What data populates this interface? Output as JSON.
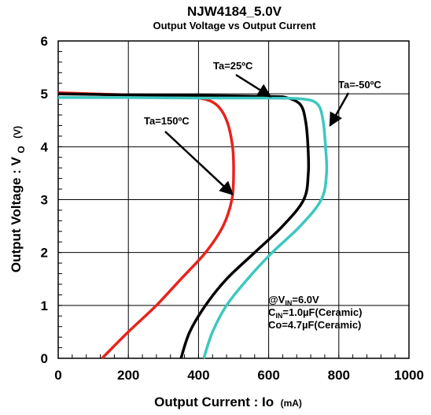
{
  "chart_data": {
    "type": "line",
    "title": "NJW4184_5.0V",
    "subtitle": "Output Voltage vs Output Current",
    "xlabel": "Output Current : Io",
    "xlabel_unit": "(mA)",
    "ylabel": "Output Voltage : V",
    "ylabel_sub": "O",
    "ylabel_unit": "(V)",
    "xlim": [
      0,
      1000
    ],
    "ylim": [
      0,
      6
    ],
    "xticks": [
      "0",
      "200",
      "400",
      "600",
      "800",
      "1000"
    ],
    "yticks": [
      "0",
      "1",
      "2",
      "3",
      "4",
      "5",
      "6"
    ],
    "grid": true,
    "series": [
      {
        "name": "Ta=150ºC",
        "color": "#e8231d",
        "x": [
          0,
          100,
          200,
          300,
          400,
          450,
          480,
          497,
          500,
          495,
          470,
          420,
          350,
          280,
          200,
          125
        ],
        "y": [
          5.02,
          5.0,
          4.98,
          4.96,
          4.92,
          4.8,
          4.5,
          4.0,
          3.5,
          3.0,
          2.5,
          2.0,
          1.5,
          1.0,
          0.5,
          0.0
        ]
      },
      {
        "name": "Ta=25ºC",
        "color": "#000000",
        "x": [
          0,
          200,
          400,
          600,
          650,
          690,
          705,
          712,
          713,
          700,
          640,
          560,
          480,
          420,
          375,
          350
        ],
        "y": [
          5.0,
          4.98,
          4.97,
          4.95,
          4.93,
          4.8,
          4.5,
          4.0,
          3.5,
          3.0,
          2.5,
          2.0,
          1.5,
          1.0,
          0.5,
          0.0
        ]
      },
      {
        "name": "Ta=-50ºC",
        "color": "#3cc8c0",
        "x": [
          0,
          200,
          400,
          600,
          700,
          740,
          755,
          762,
          765,
          750,
          690,
          610,
          540,
          480,
          440,
          415
        ],
        "y": [
          4.93,
          4.93,
          4.92,
          4.92,
          4.9,
          4.8,
          4.5,
          4.0,
          3.5,
          3.0,
          2.5,
          2.0,
          1.5,
          1.0,
          0.5,
          0.0
        ]
      }
    ],
    "annotations": [
      {
        "text": "Ta=150ºC",
        "points_to": [
          497,
          3.1
        ]
      },
      {
        "text": "Ta=25ºC",
        "points_to": [
          605,
          4.95
        ]
      },
      {
        "text": "Ta=-50ºC",
        "points_to": [
          775,
          4.4
        ]
      }
    ],
    "conditions": {
      "vin_prefix": "@V",
      "vin_sub": "IN",
      "vin_value": "=6.0V",
      "cin_prefix": "C",
      "cin_sub": "IN",
      "cin_value": "=1.0µF(Ceramic)",
      "co": "Co=4.7µF(Ceramic)"
    }
  }
}
